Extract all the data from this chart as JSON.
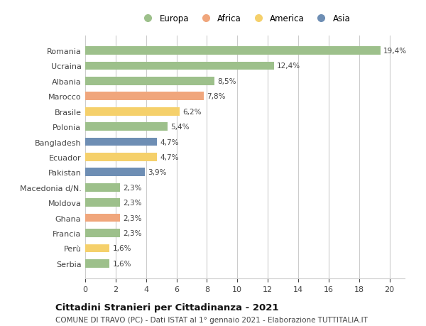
{
  "countries": [
    "Romania",
    "Ucraina",
    "Albania",
    "Marocco",
    "Brasile",
    "Polonia",
    "Bangladesh",
    "Ecuador",
    "Pakistan",
    "Macedonia d/N.",
    "Moldova",
    "Ghana",
    "Francia",
    "Perù",
    "Serbia"
  ],
  "values": [
    19.4,
    12.4,
    8.5,
    7.8,
    6.2,
    5.4,
    4.7,
    4.7,
    3.9,
    2.3,
    2.3,
    2.3,
    2.3,
    1.6,
    1.6
  ],
  "labels": [
    "19,4%",
    "12,4%",
    "8,5%",
    "7,8%",
    "6,2%",
    "5,4%",
    "4,7%",
    "4,7%",
    "3,9%",
    "2,3%",
    "2,3%",
    "2,3%",
    "2,3%",
    "1,6%",
    "1,6%"
  ],
  "continents": [
    "Europa",
    "Europa",
    "Europa",
    "Africa",
    "America",
    "Europa",
    "Asia",
    "America",
    "Asia",
    "Europa",
    "Europa",
    "Africa",
    "Europa",
    "America",
    "Europa"
  ],
  "continent_colors": {
    "Europa": "#9DC08B",
    "Africa": "#F0A67C",
    "America": "#F5D06B",
    "Asia": "#6E8EB4"
  },
  "legend_order": [
    "Europa",
    "Africa",
    "America",
    "Asia"
  ],
  "xlim": [
    0,
    21
  ],
  "xticks": [
    0,
    2,
    4,
    6,
    8,
    10,
    12,
    14,
    16,
    18,
    20
  ],
  "title": "Cittadini Stranieri per Cittadinanza - 2021",
  "subtitle": "COMUNE DI TRAVO (PC) - Dati ISTAT al 1° gennaio 2021 - Elaborazione TUTTITALIA.IT",
  "bg_color": "#FFFFFF",
  "grid_color": "#CCCCCC",
  "bar_height": 0.55,
  "label_fontsize": 7.5,
  "ytick_fontsize": 8.0,
  "xtick_fontsize": 8.0,
  "legend_fontsize": 8.5,
  "title_fontsize": 9.5,
  "subtitle_fontsize": 7.5
}
